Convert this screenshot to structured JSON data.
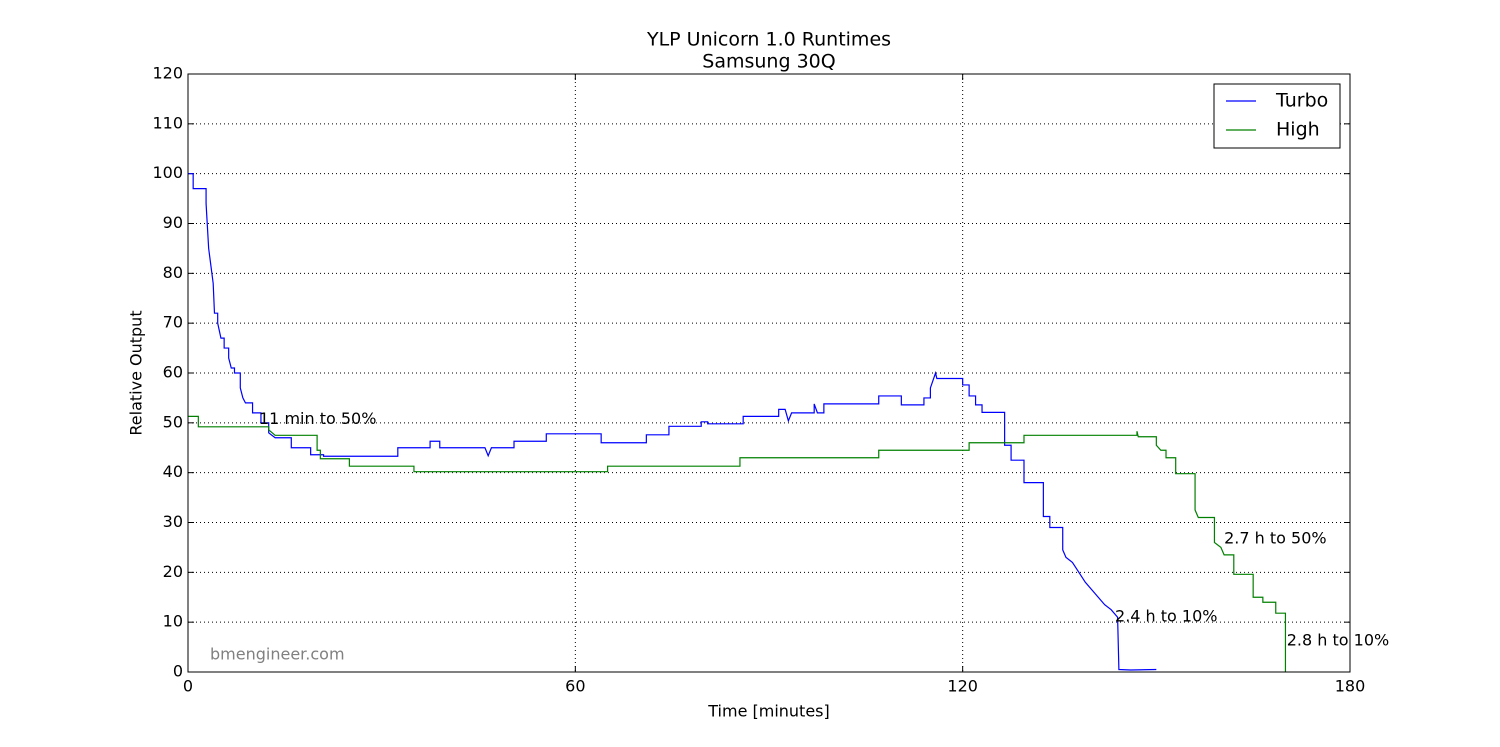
{
  "chart_data": {
    "type": "line",
    "title": "YLP Unicorn 1.0 Runtimes",
    "subtitle": "Samsung 30Q",
    "x_label": "Time [minutes]",
    "y_label": "Relative Output",
    "xlim": [
      0,
      180
    ],
    "xticks": [
      0,
      60,
      120,
      180
    ],
    "ylim": [
      0,
      120
    ],
    "yticks": [
      0,
      10,
      20,
      30,
      40,
      50,
      60,
      70,
      80,
      90,
      100,
      110,
      120
    ],
    "grid": true,
    "legend": "upper right",
    "watermark": "bmengineer.com",
    "series": [
      {
        "name": "Turbo",
        "color": "#0000ff",
        "x": [
          0,
          0.8,
          0.8,
          2.8,
          2.8,
          3.2,
          3.5,
          3.9,
          4.1,
          4.6,
          4.6,
          5.1,
          5.6,
          5.6,
          6.3,
          6.3,
          6.7,
          7.2,
          7.2,
          8.1,
          8.1,
          8.5,
          8.9,
          10,
          10,
          11.3,
          11.3,
          12.5,
          12.5,
          13.5,
          16,
          16,
          19,
          19,
          21,
          21,
          32.5,
          32.5,
          37.5,
          37.5,
          39,
          39,
          46,
          46.5,
          47,
          50.5,
          50.5,
          55.5,
          55.5,
          64,
          64,
          71,
          71,
          74.5,
          74.5,
          79.5,
          79.5,
          80.5,
          80.5,
          86,
          86,
          91.5,
          91.5,
          92.5,
          93,
          93.5,
          97,
          97,
          97.5,
          98.5,
          98.5,
          107,
          107,
          110.5,
          110.5,
          114,
          114,
          115,
          115,
          115.8,
          116,
          120,
          120,
          121,
          121,
          122,
          122,
          123,
          123,
          126.5,
          126.5,
          127.5,
          127.5,
          129.5,
          129.5,
          132.5,
          132.5,
          133.5,
          133.5,
          135.5,
          135.5,
          136,
          137,
          138,
          139,
          140,
          141,
          142,
          143,
          144,
          144.2,
          146,
          150
        ],
        "values": [
          100,
          100,
          97,
          97,
          94,
          85,
          82,
          78,
          72,
          72,
          70,
          67,
          67,
          65,
          65,
          63,
          61,
          61,
          60,
          60,
          57,
          55,
          54,
          54,
          52,
          52,
          50,
          50,
          48,
          47,
          47,
          45,
          45,
          43.6,
          43.6,
          43.3,
          43.3,
          45,
          45,
          46.3,
          46.3,
          45,
          45,
          43.4,
          45,
          45,
          46.3,
          46.3,
          47.8,
          47.8,
          46,
          46,
          47.6,
          47.6,
          49.3,
          49.3,
          50.2,
          50.2,
          49.8,
          49.8,
          51.3,
          51.3,
          52.7,
          52.7,
          50.4,
          52,
          52,
          53.8,
          52,
          52,
          53.8,
          53.8,
          55.4,
          55.4,
          53.6,
          53.6,
          55,
          55,
          57,
          60,
          58.9,
          58.9,
          57.6,
          57.6,
          55.4,
          55.4,
          53.6,
          53.6,
          52.1,
          52.1,
          45.5,
          45.5,
          42.5,
          42.5,
          38,
          38,
          31.2,
          31.2,
          29,
          29,
          24.5,
          23,
          22,
          20,
          18,
          16.5,
          15,
          13.5,
          12.5,
          11,
          0.5,
          0.4,
          0.5
        ]
      },
      {
        "name": "High",
        "color": "#008000",
        "x": [
          0,
          1.6,
          1.6,
          12.5,
          12.5,
          13.5,
          20,
          20,
          20.5,
          20.5,
          25,
          25,
          35,
          35,
          65,
          65,
          85.5,
          85.5,
          107,
          107,
          121,
          121,
          129.5,
          129.5,
          147,
          147,
          147.2,
          150,
          150,
          150.7,
          151.5,
          151.5,
          153,
          153,
          156,
          156,
          156.5,
          159,
          159,
          160,
          160.5,
          162,
          162,
          165,
          165,
          166.5,
          166.5,
          168.5,
          168.5,
          170,
          170
        ],
        "values": [
          51.3,
          51.3,
          49.2,
          49.2,
          48.6,
          47.5,
          47.5,
          44.5,
          44.5,
          42.8,
          42.8,
          41.3,
          41.3,
          40.2,
          40.2,
          41.3,
          41.3,
          43,
          43,
          44.5,
          44.5,
          46,
          46,
          47.5,
          47.5,
          48.3,
          47.2,
          47.2,
          45.5,
          44.5,
          44.5,
          43,
          43,
          39.8,
          39.8,
          32.5,
          31,
          31,
          26,
          25,
          23.5,
          23.5,
          19.6,
          19.6,
          15,
          15,
          14,
          14,
          11.8,
          11.8,
          0
        ]
      }
    ],
    "annotations": [
      {
        "text": "11 min to 50%",
        "x": 11,
        "y": 50.7
      },
      {
        "text": "2.4 h to 10%",
        "x": 143.6,
        "y": 11
      },
      {
        "text": "2.7 h to 50%",
        "x": 160.5,
        "y": 26.7
      },
      {
        "text": "2.8 h to 10%",
        "x": 170.2,
        "y": 6.2
      }
    ]
  }
}
